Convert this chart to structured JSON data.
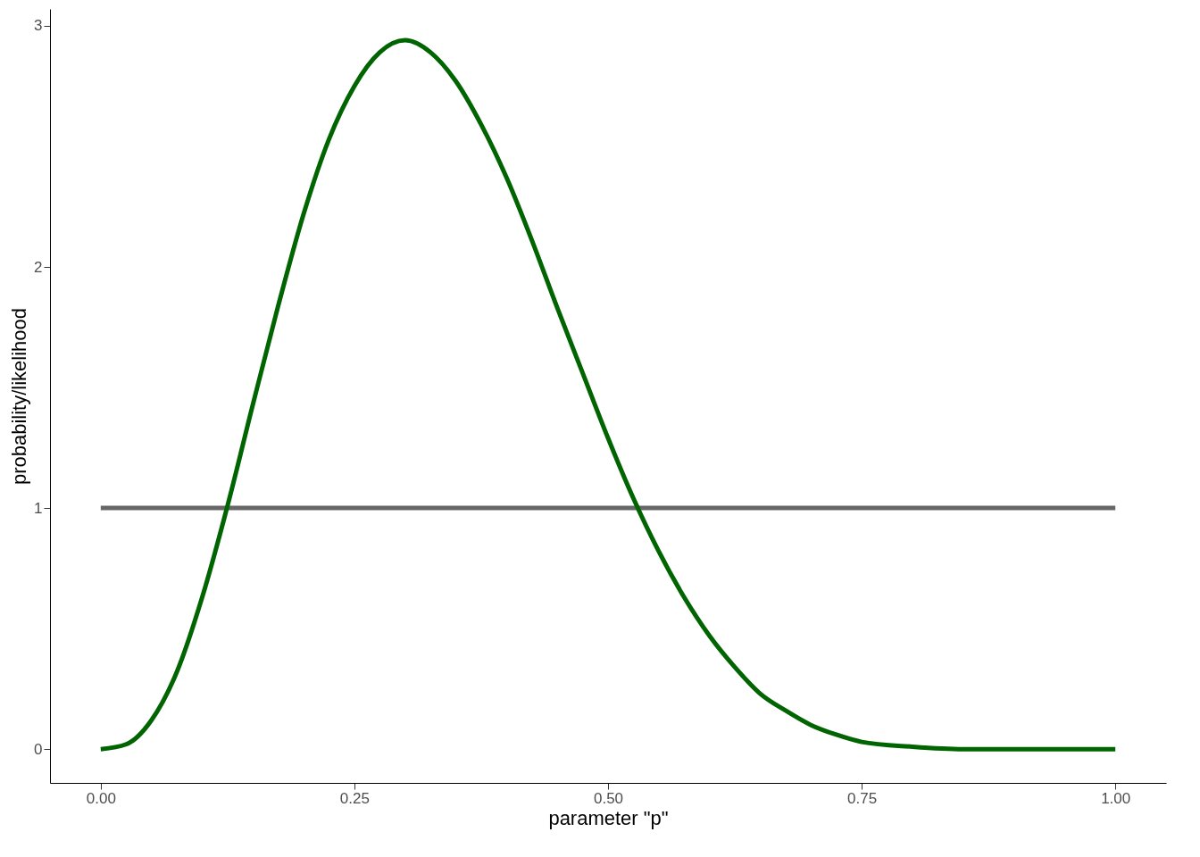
{
  "chart_data": {
    "type": "line",
    "xlabel": "parameter \"p\"",
    "ylabel": "probability/likelihood",
    "xlim": [
      -0.05,
      1.05
    ],
    "ylim": [
      -0.14,
      3.07
    ],
    "xticks": [
      {
        "value": 0,
        "label": "0.00"
      },
      {
        "value": 0.25,
        "label": "0.25"
      },
      {
        "value": 0.5,
        "label": "0.50"
      },
      {
        "value": 0.75,
        "label": "0.75"
      },
      {
        "value": 1,
        "label": "1.00"
      }
    ],
    "yticks": [
      0,
      1,
      2,
      3
    ],
    "grid": false,
    "marker": "none",
    "line_style": "solid",
    "series": [
      {
        "color": "#666666",
        "x": [
          0,
          1
        ],
        "values": [
          1,
          1
        ]
      },
      {
        "color": "#006400",
        "x": [
          0,
          0.025,
          0.05,
          0.075,
          0.1,
          0.125,
          0.15,
          0.175,
          0.2,
          0.225,
          0.25,
          0.275,
          0.3,
          0.325,
          0.35,
          0.375,
          0.4,
          0.425,
          0.45,
          0.475,
          0.5,
          0.525,
          0.55,
          0.575,
          0.6,
          0.625,
          0.65,
          0.675,
          0.7,
          0.725,
          0.75,
          0.8,
          0.85,
          0.9,
          1
        ],
        "values": [
          0,
          0.02,
          0.12,
          0.32,
          0.63,
          1.01,
          1.43,
          1.84,
          2.22,
          2.53,
          2.75,
          2.89,
          2.94,
          2.89,
          2.77,
          2.59,
          2.37,
          2.11,
          1.83,
          1.56,
          1.29,
          1.04,
          0.82,
          0.63,
          0.47,
          0.34,
          0.23,
          0.16,
          0.1,
          0.06,
          0.03,
          0.01,
          0,
          0,
          0
        ]
      }
    ]
  }
}
